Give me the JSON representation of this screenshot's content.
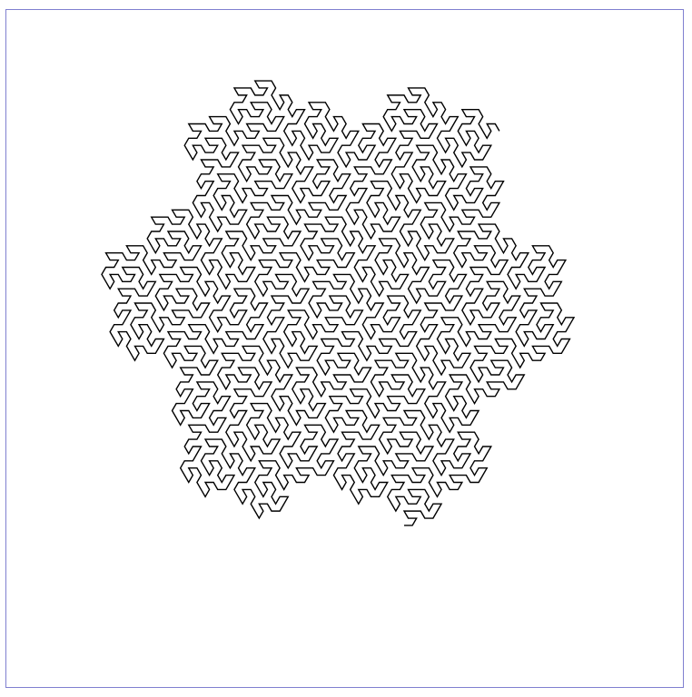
{
  "figure": {
    "type": "gosper-curve",
    "order": 4,
    "stroke_color": "#000000",
    "frame_border_color": "#8080d0",
    "background_color": "#ffffff"
  }
}
